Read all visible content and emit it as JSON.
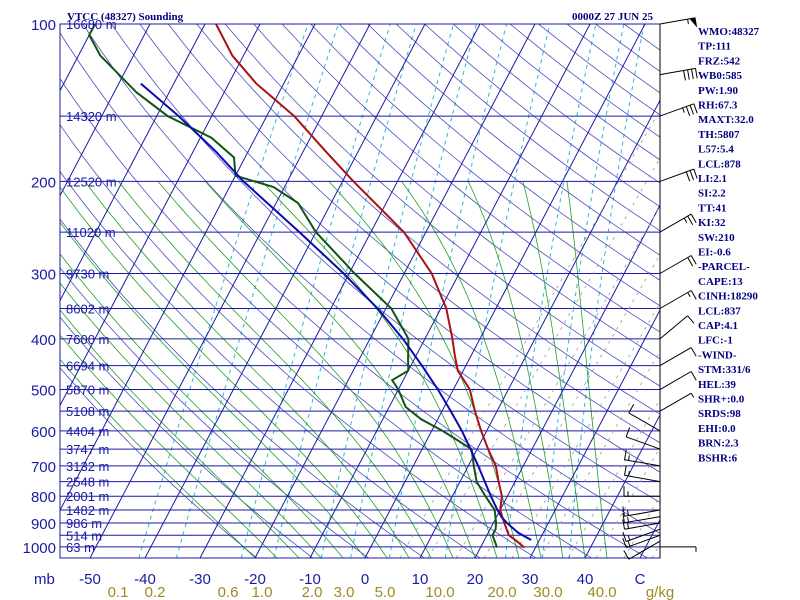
{
  "header": {
    "station": "VTCC (48327) Sounding",
    "time": "0000Z 27 JUN 25"
  },
  "colors": {
    "isobar": "#1a1aa6",
    "isotherm": "#1a1aa6",
    "dry_adiabat": "#3b3bb8",
    "moist_adiabat": "#22a022",
    "mixing_ratio": "#2ab8d8",
    "temperature": "#aa1111",
    "dewpoint": "#115511",
    "parcel": "#0b0bb0",
    "hodo_guide": "#999999",
    "text_navy": "#000080",
    "mixing_label": "#a08a20"
  },
  "chart_data": {
    "type": "skew-t",
    "pressure_axis": {
      "unit": "mb",
      "ticks": [
        100,
        200,
        300,
        400,
        500,
        600,
        700,
        800,
        900,
        1000
      ],
      "scale": "log"
    },
    "temp_axis": {
      "ticks": [
        -50,
        -40,
        -30,
        -20,
        -10,
        0,
        10,
        20,
        30,
        40,
        50
      ],
      "tick_labels": [
        "-50",
        "-40",
        "-30",
        "-20",
        "-10",
        "0",
        "10",
        "20",
        "30",
        "40",
        "C"
      ]
    },
    "mixing_ratio_labels": [
      "0.1",
      "0.2",
      "0.6",
      "1.0",
      "2.0",
      "3.0",
      "5.0",
      "10.0",
      "20.0",
      "30.0",
      "40.0",
      "g/kg"
    ],
    "heights": [
      {
        "p": 100,
        "label": "16680 m"
      },
      {
        "p": 150,
        "label": "14320 m"
      },
      {
        "p": 200,
        "label": "12520 m"
      },
      {
        "p": 250,
        "label": "11020 m"
      },
      {
        "p": 300,
        "label": "9730 m"
      },
      {
        "p": 350,
        "label": "8602 m"
      },
      {
        "p": 400,
        "label": "7600 m"
      },
      {
        "p": 450,
        "label": "6694 m"
      },
      {
        "p": 500,
        "label": "5870 m"
      },
      {
        "p": 550,
        "label": "5108 m"
      },
      {
        "p": 600,
        "label": "4404 m"
      },
      {
        "p": 650,
        "label": "3747 m"
      },
      {
        "p": 700,
        "label": "3132 m"
      },
      {
        "p": 750,
        "label": "2548 m"
      },
      {
        "p": 800,
        "label": "2001 m"
      },
      {
        "p": 850,
        "label": "1482 m"
      },
      {
        "p": 900,
        "label": "986 m"
      },
      {
        "p": 950,
        "label": "514 m"
      },
      {
        "p": 1000,
        "label": "63 m"
      }
    ],
    "series": [
      {
        "name": "temperature",
        "points": [
          [
            1003,
            28.0
          ],
          [
            975,
            26.0
          ],
          [
            950,
            24.0
          ],
          [
            925,
            23.0
          ],
          [
            900,
            22.0
          ],
          [
            875,
            21.0
          ],
          [
            850,
            20.0
          ],
          [
            800,
            19.0
          ],
          [
            750,
            17.0
          ],
          [
            700,
            15.0
          ],
          [
            650,
            12.0
          ],
          [
            600,
            9.0
          ],
          [
            550,
            6.0
          ],
          [
            500,
            3.0
          ],
          [
            460,
            -1.0
          ],
          [
            430,
            -3.0
          ],
          [
            400,
            -5.0
          ],
          [
            350,
            -9.0
          ],
          [
            300,
            -15.0
          ],
          [
            250,
            -24.0
          ],
          [
            200,
            -38.0
          ],
          [
            175,
            -46.0
          ],
          [
            150,
            -55.0
          ],
          [
            130,
            -65.0
          ],
          [
            115,
            -72.0
          ],
          [
            100,
            -78.0
          ],
          [
            95,
            -79.0
          ]
        ]
      },
      {
        "name": "dewpoint",
        "points": [
          [
            1003,
            23.0
          ],
          [
            975,
            22.0
          ],
          [
            950,
            21.0
          ],
          [
            925,
            21.0
          ],
          [
            900,
            20.5
          ],
          [
            850,
            19.0
          ],
          [
            800,
            16.0
          ],
          [
            750,
            13.0
          ],
          [
            700,
            11.0
          ],
          [
            650,
            9.0
          ],
          [
            600,
            2.0
          ],
          [
            570,
            -3.0
          ],
          [
            540,
            -7.0
          ],
          [
            500,
            -10.0
          ],
          [
            480,
            -12.0
          ],
          [
            460,
            -10.0
          ],
          [
            440,
            -11.0
          ],
          [
            400,
            -13.0
          ],
          [
            350,
            -19.0
          ],
          [
            300,
            -29.0
          ],
          [
            250,
            -40.0
          ],
          [
            220,
            -46.0
          ],
          [
            205,
            -52.0
          ],
          [
            195,
            -60.0
          ],
          [
            180,
            -62.0
          ],
          [
            165,
            -68.0
          ],
          [
            150,
            -78.0
          ],
          [
            135,
            -86.0
          ],
          [
            115,
            -96.0
          ],
          [
            105,
            -100.0
          ],
          [
            100,
            -100.0
          ],
          [
            95,
            -98.0
          ]
        ]
      },
      {
        "name": "parcel",
        "points": [
          [
            970,
            28.5
          ],
          [
            940,
            25.5
          ],
          [
            920,
            24.0
          ],
          [
            900,
            22.5
          ],
          [
            878,
            21.0
          ],
          [
            850,
            19.5
          ],
          [
            800,
            17.0
          ],
          [
            750,
            14.5
          ],
          [
            700,
            11.8
          ],
          [
            650,
            8.8
          ],
          [
            600,
            5.5
          ],
          [
            550,
            1.6
          ],
          [
            500,
            -2.8
          ],
          [
            450,
            -8.0
          ],
          [
            400,
            -14.0
          ],
          [
            350,
            -21.5
          ],
          [
            300,
            -31.0
          ],
          [
            250,
            -43.0
          ],
          [
            200,
            -58.0
          ],
          [
            175,
            -66.0
          ],
          [
            150,
            -76.0
          ],
          [
            130,
            -86.0
          ]
        ]
      }
    ],
    "wind_barbs": [
      {
        "p": 1000,
        "dir": 90,
        "kt": 5
      },
      {
        "p": 975,
        "dir": 240,
        "kt": 10
      },
      {
        "p": 950,
        "dir": 250,
        "kt": 15
      },
      {
        "p": 925,
        "dir": 250,
        "kt": 15
      },
      {
        "p": 900,
        "dir": 260,
        "kt": 15
      },
      {
        "p": 875,
        "dir": 260,
        "kt": 15
      },
      {
        "p": 850,
        "dir": 260,
        "kt": 15
      },
      {
        "p": 800,
        "dir": 270,
        "kt": 15
      },
      {
        "p": 750,
        "dir": 280,
        "kt": 15
      },
      {
        "p": 700,
        "dir": 280,
        "kt": 15
      },
      {
        "p": 650,
        "dir": 290,
        "kt": 10
      },
      {
        "p": 600,
        "dir": 300,
        "kt": 10
      },
      {
        "p": 550,
        "dir": 60,
        "kt": 5
      },
      {
        "p": 500,
        "dir": 60,
        "kt": 10
      },
      {
        "p": 450,
        "dir": 60,
        "kt": 10
      },
      {
        "p": 400,
        "dir": 50,
        "kt": 10
      },
      {
        "p": 350,
        "dir": 60,
        "kt": 15
      },
      {
        "p": 300,
        "dir": 60,
        "kt": 20
      },
      {
        "p": 250,
        "dir": 60,
        "kt": 25
      },
      {
        "p": 200,
        "dir": 70,
        "kt": 30
      },
      {
        "p": 150,
        "dir": 70,
        "kt": 35
      },
      {
        "p": 125,
        "dir": 80,
        "kt": 40
      },
      {
        "p": 100,
        "dir": 80,
        "kt": 55
      }
    ]
  },
  "indices": [
    "WMO:48327",
    "TP:111",
    "FRZ:542",
    "WB0:585",
    "PW:1.90",
    "RH:67.3",
    "MAXT:32.0",
    "TH:5807",
    "L57:5.4",
    "LCL:878",
    "LI:2.1",
    "SI:2.2",
    "TT:41",
    "KI:32",
    "SW:210",
    "EI:-0.6",
    "-PARCEL-",
    "CAPE:13",
    "CINH:18290",
    "LCL:837",
    "CAP:4.1",
    "LFC:-1",
    "-WIND-",
    "STM:331/6",
    "HEL:39",
    "SHR+:0.0",
    "SRDS:98",
    "EHI:0.0",
    "BRN:2.3",
    "BSHR:6"
  ]
}
